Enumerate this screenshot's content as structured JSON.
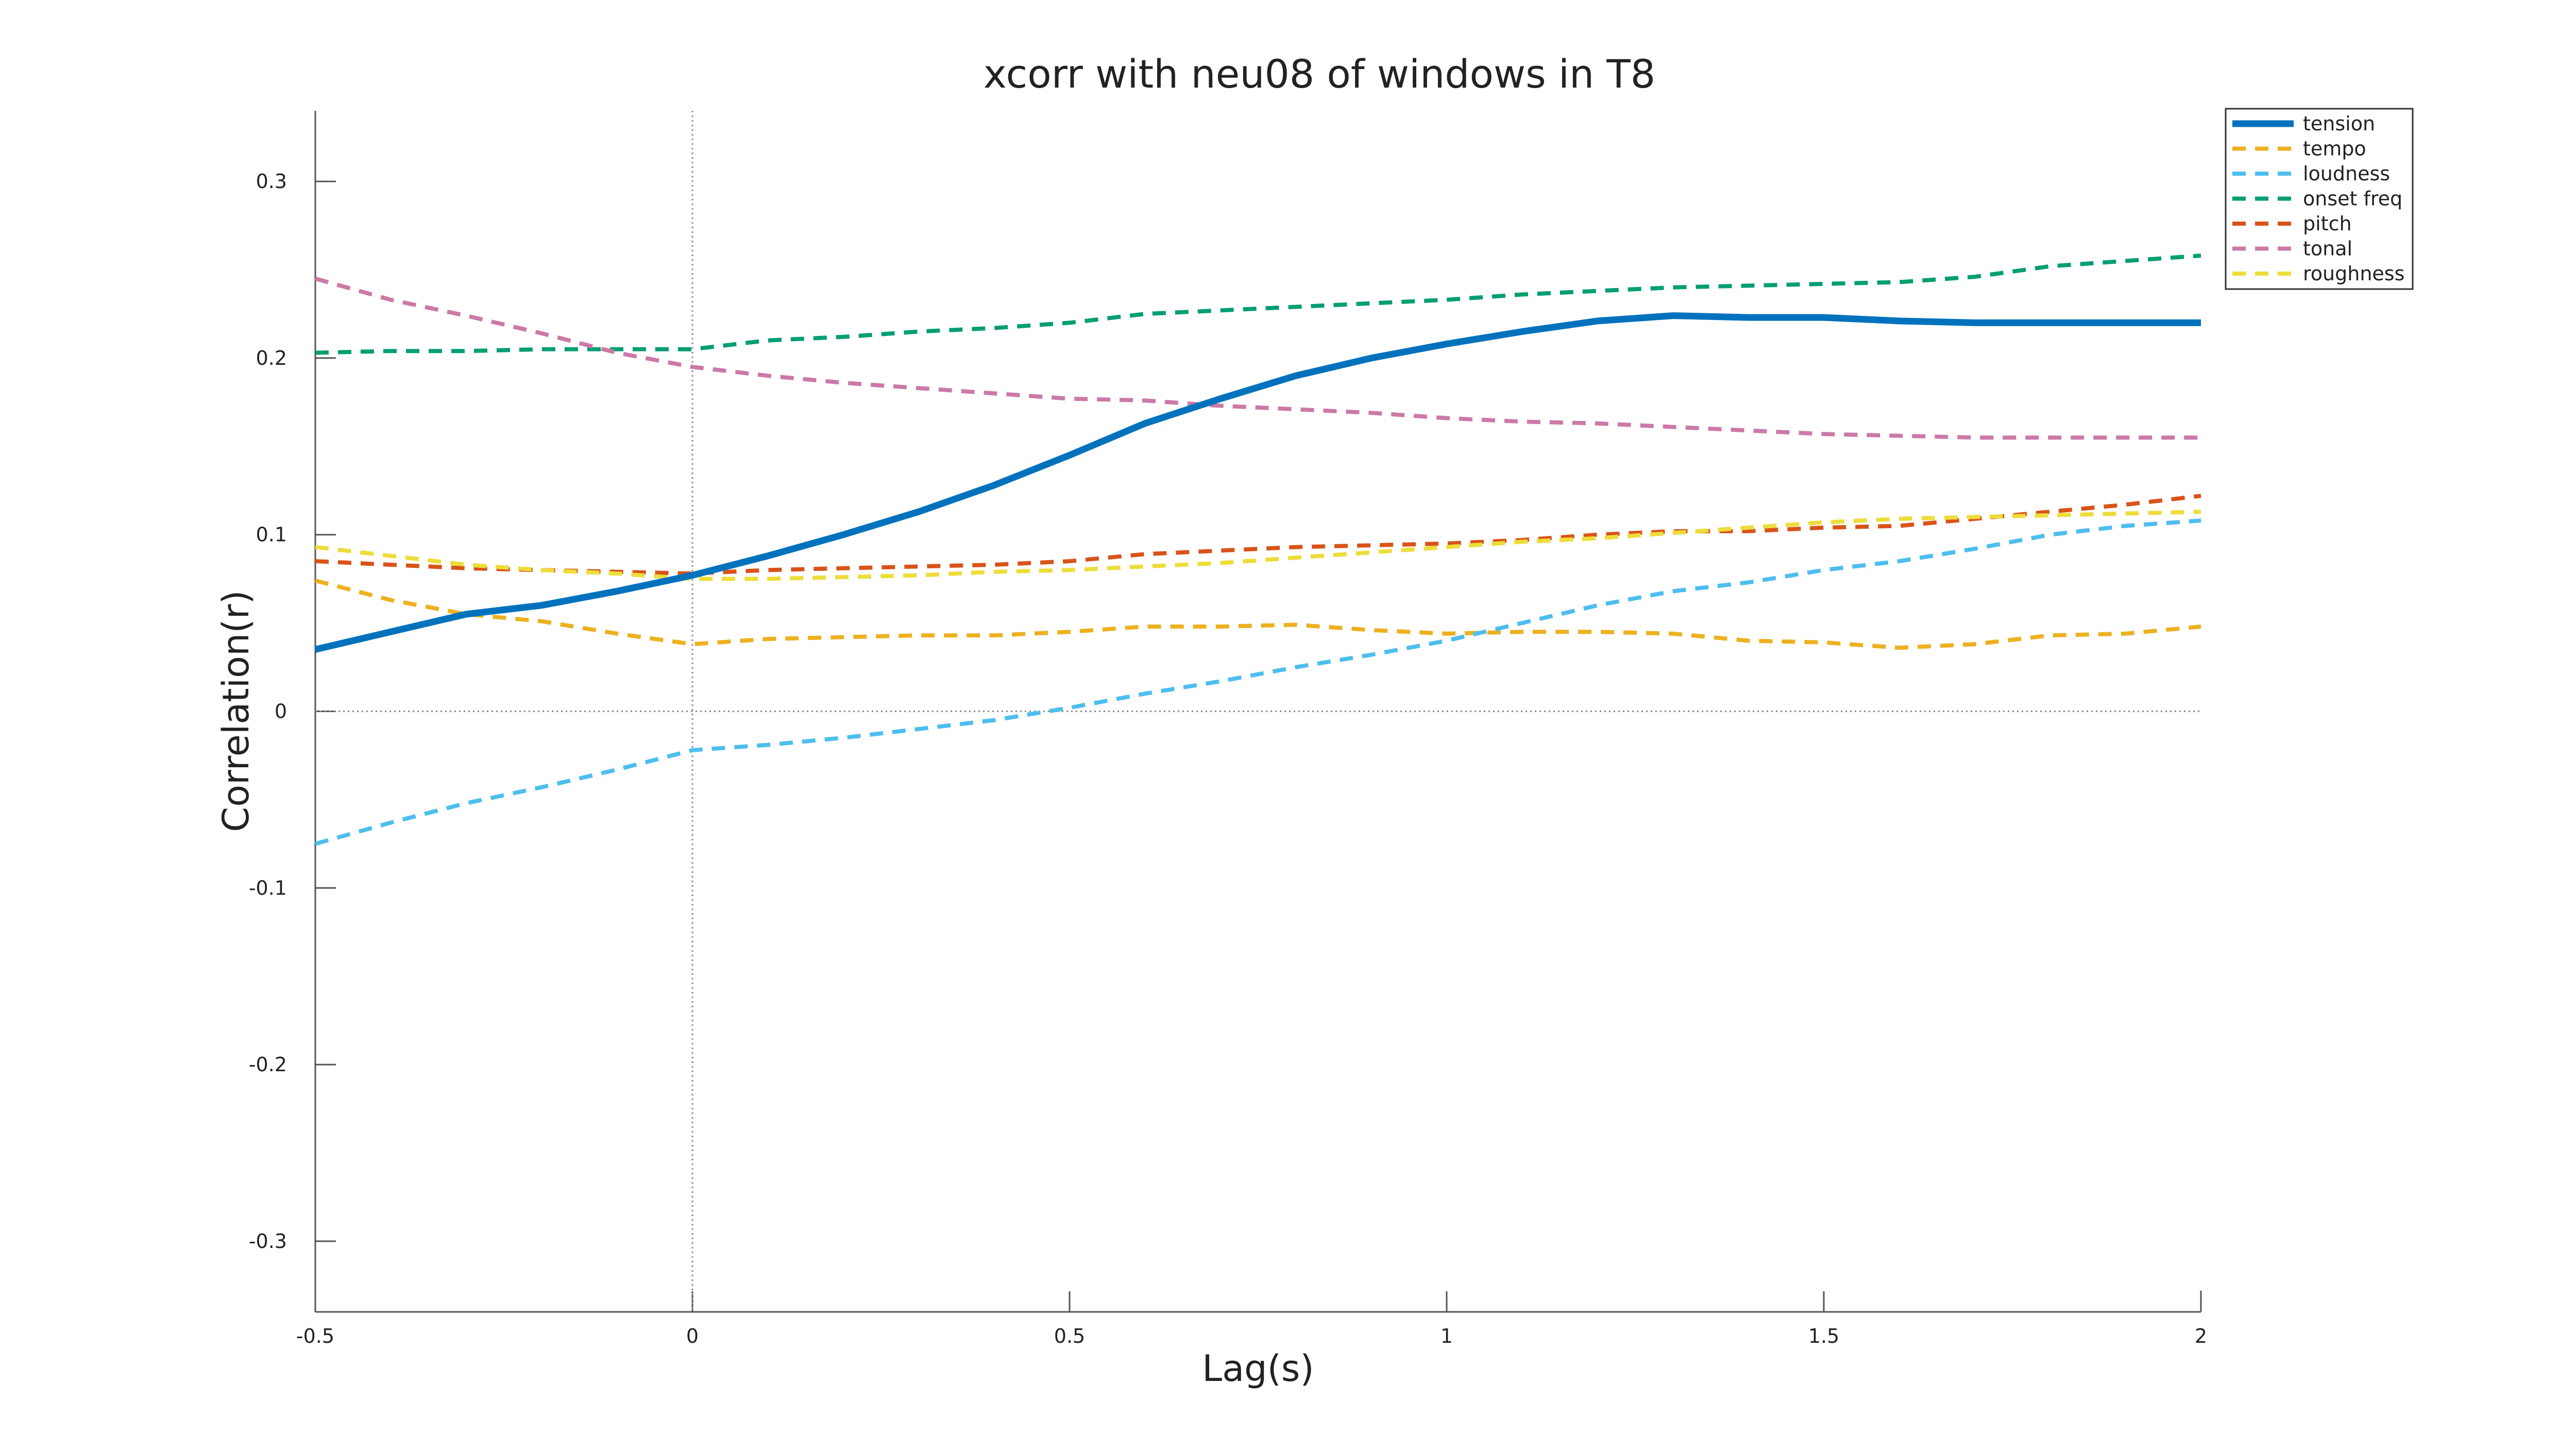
{
  "chart_data": {
    "type": "line",
    "title": "xcorr with neu08 of windows in T8",
    "xlabel": "Lag(s)",
    "ylabel": "Correlation(r)",
    "xlim": [
      -0.5,
      2
    ],
    "ylim": [
      -0.34,
      0.34
    ],
    "xticks": [
      -0.5,
      0,
      0.5,
      1,
      1.5,
      2
    ],
    "xtick_labels": [
      "-0.5",
      "0",
      "0.5",
      "1",
      "1.5",
      "2"
    ],
    "yticks": [
      0.3,
      0.2,
      0.1,
      0,
      -0.1,
      -0.2,
      -0.3
    ],
    "ytick_labels": [
      "0.3",
      "0.2",
      "0.1",
      "0",
      "-0.1",
      "-0.2",
      "-0.3"
    ],
    "reference_lines": {
      "x": 0,
      "y": 0
    },
    "legend_position": "top-right",
    "x": [
      -0.5,
      -0.4,
      -0.3,
      -0.2,
      -0.1,
      0,
      0.1,
      0.2,
      0.3,
      0.4,
      0.5,
      0.6,
      0.7,
      0.8,
      0.9,
      1.0,
      1.1,
      1.2,
      1.3,
      1.4,
      1.5,
      1.6,
      1.7,
      1.8,
      1.9,
      2.0
    ],
    "series": [
      {
        "name": "tension",
        "color": "#0072BD",
        "style": "solid",
        "values": [
          0.035,
          0.045,
          0.055,
          0.06,
          0.068,
          0.077,
          0.088,
          0.1,
          0.113,
          0.128,
          0.145,
          0.163,
          0.177,
          0.19,
          0.2,
          0.208,
          0.215,
          0.221,
          0.224,
          0.223,
          0.223,
          0.221,
          0.22,
          0.22,
          0.22,
          0.22
        ]
      },
      {
        "name": "tempo",
        "color": "#EDB120",
        "style": "dashed",
        "values": [
          0.074,
          0.063,
          0.055,
          0.051,
          0.044,
          0.038,
          0.041,
          0.042,
          0.043,
          0.043,
          0.045,
          0.048,
          0.048,
          0.049,
          0.046,
          0.044,
          0.045,
          0.045,
          0.044,
          0.04,
          0.039,
          0.036,
          0.038,
          0.043,
          0.044,
          0.048
        ]
      },
      {
        "name": "loudness",
        "color": "#4DBEEE",
        "style": "dashed",
        "values": [
          -0.075,
          -0.063,
          -0.052,
          -0.043,
          -0.033,
          -0.022,
          -0.019,
          -0.015,
          -0.01,
          -0.005,
          0.002,
          0.01,
          0.017,
          0.025,
          0.032,
          0.04,
          0.05,
          0.06,
          0.068,
          0.073,
          0.08,
          0.085,
          0.092,
          0.1,
          0.105,
          0.108
        ]
      },
      {
        "name": "onset freq",
        "color": "#009E73",
        "style": "dashed",
        "values": [
          0.203,
          0.204,
          0.204,
          0.205,
          0.205,
          0.205,
          0.21,
          0.212,
          0.215,
          0.217,
          0.22,
          0.225,
          0.227,
          0.229,
          0.231,
          0.233,
          0.236,
          0.238,
          0.24,
          0.241,
          0.242,
          0.243,
          0.246,
          0.252,
          0.255,
          0.258
        ]
      },
      {
        "name": "pitch",
        "color": "#D95319",
        "style": "dashed",
        "values": [
          0.085,
          0.083,
          0.081,
          0.08,
          0.079,
          0.078,
          0.08,
          0.081,
          0.082,
          0.083,
          0.085,
          0.089,
          0.091,
          0.093,
          0.094,
          0.095,
          0.097,
          0.1,
          0.102,
          0.102,
          0.104,
          0.105,
          0.109,
          0.113,
          0.117,
          0.122
        ]
      },
      {
        "name": "tonal",
        "color": "#CC79A7",
        "style": "dashed",
        "values": [
          0.245,
          0.233,
          0.224,
          0.214,
          0.203,
          0.195,
          0.19,
          0.186,
          0.183,
          0.18,
          0.177,
          0.176,
          0.173,
          0.171,
          0.169,
          0.166,
          0.164,
          0.163,
          0.161,
          0.159,
          0.157,
          0.156,
          0.155,
          0.155,
          0.155,
          0.155
        ]
      },
      {
        "name": "roughness",
        "color": "#EDDD3A",
        "style": "dashed",
        "values": [
          0.093,
          0.088,
          0.083,
          0.08,
          0.078,
          0.075,
          0.075,
          0.076,
          0.077,
          0.079,
          0.08,
          0.082,
          0.084,
          0.087,
          0.09,
          0.093,
          0.096,
          0.098,
          0.101,
          0.104,
          0.107,
          0.109,
          0.11,
          0.111,
          0.112,
          0.113
        ]
      }
    ]
  }
}
